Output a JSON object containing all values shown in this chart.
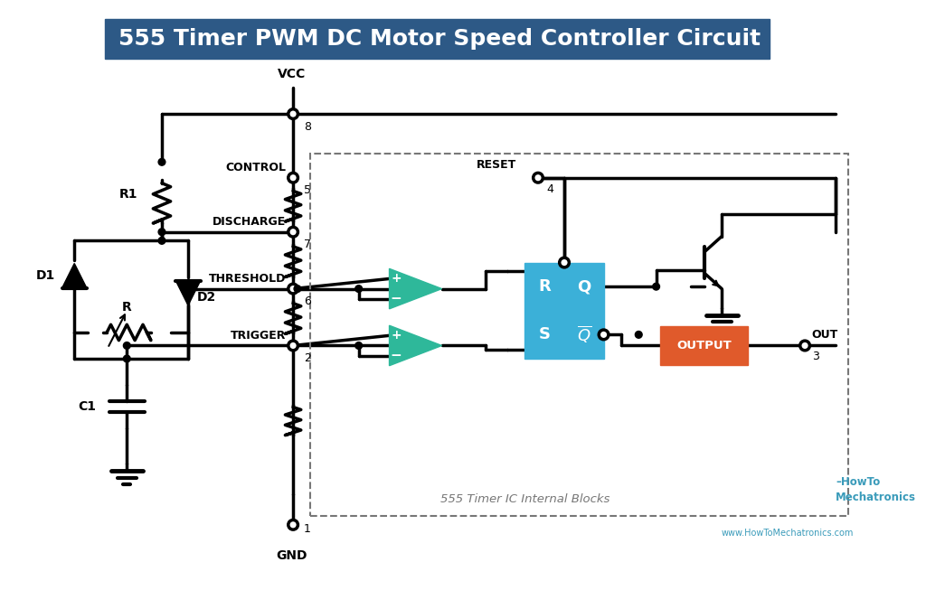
{
  "title": "555 Timer PWM DC Motor Speed Controller Circuit",
  "title_bg": "#2d5986",
  "title_color": "#ffffff",
  "title_fontsize": 18,
  "bg_color": "#ffffff",
  "line_color": "#000000",
  "line_width": 2.5,
  "resistor_color": "#000000",
  "diode_color": "#000000",
  "cap_color": "#000000",
  "comparator_color": "#2eb89a",
  "sr_latch_color": "#3bb0d8",
  "output_color": "#e05a2b",
  "dashed_box_color": "#777777",
  "text_color": "#000000",
  "label_fontsize": 10,
  "pin_fontsize": 9,
  "internal_label": "555 Timer IC Internal Blocks",
  "watermark": "HowTo\nMechatronics",
  "watermark_url": "www.HowToMechatronics.com"
}
